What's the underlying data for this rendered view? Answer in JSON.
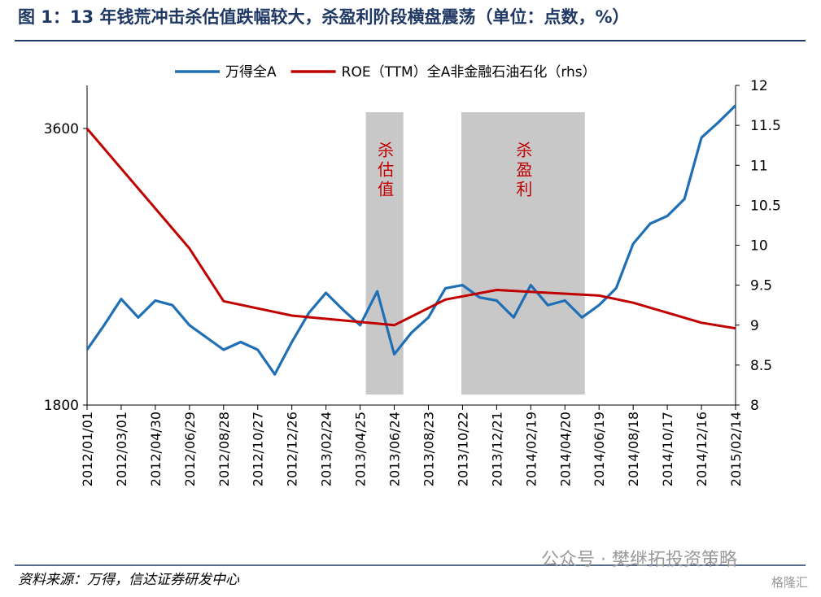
{
  "chart_data": {
    "type": "line",
    "title": "图 1：13 年钱荒冲击杀估值跌幅较大，杀盈利阶段横盘震荡（单位：点数，%）",
    "source": "资料来源：万得，信达证券研发中心",
    "watermark": "公众号 · 樊继拓投资策略",
    "watermark2": "格隆汇",
    "x": [
      "2012/01/01",
      "2012/01/31",
      "2012/03/01",
      "2012/03/31",
      "2012/04/30",
      "2012/05/30",
      "2012/06/29",
      "2012/07/29",
      "2012/08/28",
      "2012/09/27",
      "2012/10/27",
      "2012/11/26",
      "2012/12/26",
      "2013/01/25",
      "2013/02/24",
      "2013/03/26",
      "2013/04/25",
      "2013/05/25",
      "2013/06/24",
      "2013/07/24",
      "2013/08/23",
      "2013/09/22",
      "2013/10/22",
      "2013/11/21",
      "2013/12/21",
      "2014/01/20",
      "2014/02/19",
      "2014/03/21",
      "2014/04/20",
      "2014/05/20",
      "2014/06/19",
      "2014/07/19",
      "2014/08/18",
      "2014/09/17",
      "2014/10/17",
      "2014/11/16",
      "2014/12/16",
      "2015/01/15",
      "2015/02/14"
    ],
    "series": [
      {
        "name": "万得全A",
        "color": "#1f6fb5",
        "values": [
          2160,
          2320,
          2490,
          2370,
          2480,
          2450,
          2320,
          2240,
          2160,
          2210,
          2160,
          2000,
          2210,
          2400,
          2530,
          2420,
          2320,
          2540,
          2130,
          2270,
          2370,
          2560,
          2580,
          2500,
          2480,
          2370,
          2580,
          2450,
          2480,
          2370,
          2450,
          2560,
          2850,
          2980,
          3030,
          3140,
          3540,
          3640,
          3750
        ]
      },
      {
        "name": "ROE（TTM）全A非金融石油石化（rhs）",
        "color": "#c00000",
        "axis": "y2",
        "x": [
          "2012/01/01",
          "2012/06/29",
          "2012/08/28",
          "2012/12/26",
          "2013/06/24",
          "2013/09/22",
          "2013/12/21",
          "2014/06/19",
          "2014/08/18",
          "2014/12/16",
          "2015/02/14"
        ],
        "values": [
          11.46,
          9.96,
          9.3,
          9.12,
          9.0,
          9.32,
          9.44,
          9.37,
          9.28,
          9.03,
          8.96
        ]
      }
    ],
    "xlim": [
      "2012/01/01",
      "2015/02/14"
    ],
    "xticks": [
      "2012/01/01",
      "2012/03/01",
      "2012/04/30",
      "2012/06/29",
      "2012/08/28",
      "2012/10/27",
      "2012/12/26",
      "2013/02/24",
      "2013/04/25",
      "2013/06/24",
      "2013/08/23",
      "2013/10/22",
      "2013/12/21",
      "2014/02/19",
      "2014/04/20",
      "2014/06/19",
      "2014/08/18",
      "2014/10/17",
      "2014/12/16",
      "2015/02/14"
    ],
    "ylim": [
      1800,
      3880
    ],
    "yticks": [
      1800,
      3600
    ],
    "y2lim": [
      8,
      12
    ],
    "y2ticks": [
      8,
      8.5,
      9,
      9.5,
      10,
      10.5,
      11,
      11.5,
      12
    ],
    "shaded": [
      {
        "label": "杀估值",
        "start": "2013/05/05",
        "end": "2013/07/10"
      },
      {
        "label": "杀盈利",
        "start": "2013/10/20",
        "end": "2014/05/25"
      }
    ]
  }
}
